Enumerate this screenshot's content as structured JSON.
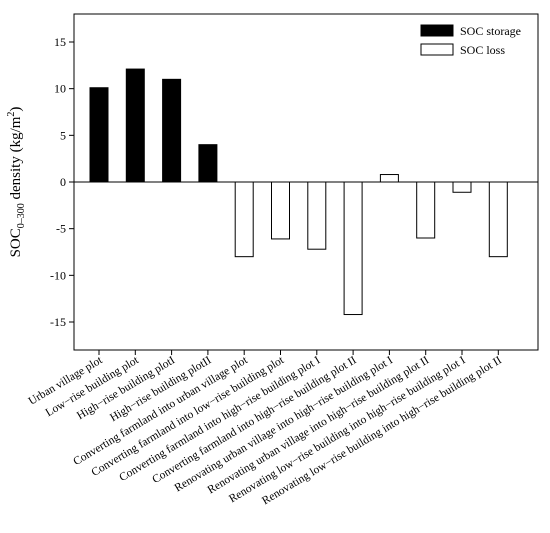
{
  "chart_data": {
    "type": "bar",
    "ylabel": {
      "main": "SOC",
      "subscript": "0–300",
      "rest": " density (kg/m",
      "superscript": "2",
      "close": ")"
    },
    "ylim": [
      -18,
      18
    ],
    "yticks": [
      15,
      10,
      5,
      0,
      -5,
      -10,
      -15
    ],
    "grid": false,
    "legend_position": "top-right",
    "categories": [
      "Urban village plot",
      "Low−rise building plot",
      "High−rise building plotI",
      "High−rise building plotII",
      "Converting farmland into urban village plot",
      "Converting farmland into low−rise building plot",
      "Converting farmland into high−rise building plot I",
      "Converting farmland into high−rise building plot II",
      "Renovating urban village into high−rise building plot I",
      "Renovating urban village into high−rise building plot II",
      "Renovating low−rise building into high−rise building plot I",
      "Renovating low−rise building into high−rise building plot II"
    ],
    "series": [
      {
        "name": "SOC storage",
        "color": "#000000",
        "values": [
          10.1,
          12.1,
          11.0,
          4.0,
          null,
          null,
          null,
          null,
          null,
          null,
          null,
          null
        ]
      },
      {
        "name": "SOC loss",
        "color": "#ffffff",
        "values": [
          null,
          null,
          null,
          null,
          -8.0,
          -6.1,
          -7.2,
          -14.2,
          0.8,
          -6.0,
          -1.1,
          -8.0
        ]
      }
    ]
  }
}
